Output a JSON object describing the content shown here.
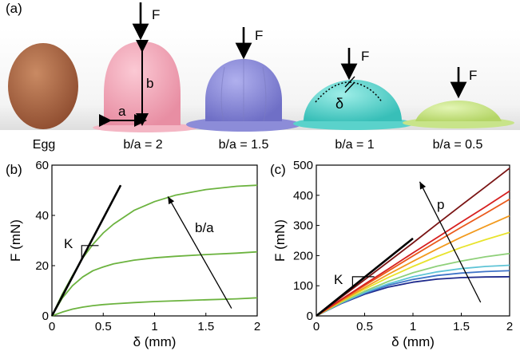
{
  "panel_a": {
    "label": "(a)",
    "captions": [
      "Egg",
      "b/a = 2",
      "b/a = 1.5",
      "b/a = 1",
      "b/a = 0.5"
    ],
    "force_symbol": "F",
    "dim_a": "a",
    "dim_b": "b",
    "deflection_symbol": "δ",
    "colors": {
      "egg": "#b86a44",
      "shell_2": "#f2a7b8",
      "shell_1_5": "#8f8fdc",
      "shell_1": "#5fd6d0",
      "shell_0_5": "#c9e58a"
    }
  },
  "panel_b": {
    "label": "(b)",
    "annotation_k": "K",
    "annotation_arrow": "b/a"
  },
  "panel_c": {
    "label": "(c)",
    "annotation_k": "K",
    "annotation_arrow": "p"
  },
  "chart_data": [
    {
      "type": "line",
      "panel": "(b)",
      "xlabel": "δ (mm)",
      "ylabel": "F (mN)",
      "xlim": [
        0,
        2
      ],
      "ylim": [
        0,
        60
      ],
      "xticks": [
        "0",
        "0.5",
        "1",
        "1.5",
        "2"
      ],
      "yticks": [
        "0",
        "20",
        "40",
        "60"
      ],
      "grid": false,
      "series": [
        {
          "color": "#6cb33f",
          "x": [
            0,
            0.1,
            0.2,
            0.3,
            0.4,
            0.5,
            0.6,
            0.8,
            1.0,
            1.2,
            1.5,
            1.8,
            2.0
          ],
          "y": [
            0,
            1.5,
            2.7,
            3.5,
            4.1,
            4.5,
            4.8,
            5.3,
            5.7,
            6.0,
            6.4,
            6.8,
            7.2
          ]
        },
        {
          "color": "#6cb33f",
          "x": [
            0,
            0.1,
            0.2,
            0.3,
            0.4,
            0.5,
            0.6,
            0.8,
            1.0,
            1.2,
            1.5,
            1.8,
            2.0
          ],
          "y": [
            0,
            7,
            12,
            15.5,
            18,
            19.5,
            20.7,
            22.2,
            23.1,
            23.7,
            24.4,
            25.0,
            25.5
          ]
        },
        {
          "color": "#6cb33f",
          "x": [
            0,
            0.1,
            0.2,
            0.3,
            0.4,
            0.5,
            0.6,
            0.8,
            1.0,
            1.2,
            1.5,
            1.8,
            2.0
          ],
          "y": [
            0,
            8.5,
            16,
            23,
            28.5,
            33,
            36.5,
            42,
            45.5,
            48,
            50.3,
            51.6,
            52
          ]
        },
        {
          "color": "#000000",
          "x": [
            0,
            0.67
          ],
          "y": [
            0,
            52
          ]
        }
      ]
    },
    {
      "type": "line",
      "panel": "(c)",
      "xlabel": "δ (mm)",
      "ylabel": "F (mN)",
      "xlim": [
        0,
        2
      ],
      "ylim": [
        0,
        500
      ],
      "xticks": [
        "0",
        "0.5",
        "1",
        "1.5",
        "2"
      ],
      "yticks": [
        "0",
        "100",
        "200",
        "300",
        "400",
        "500"
      ],
      "grid": false,
      "series": [
        {
          "color": "#1f2a8c",
          "x": [
            0,
            0.25,
            0.5,
            0.75,
            1.0,
            1.25,
            1.5,
            1.75,
            2.0
          ],
          "y": [
            0,
            40,
            72,
            96,
            112,
            122,
            127,
            129,
            130
          ]
        },
        {
          "color": "#3f74c8",
          "x": [
            0,
            0.25,
            0.5,
            0.75,
            1.0,
            1.25,
            1.5,
            1.75,
            2.0
          ],
          "y": [
            0,
            41,
            75,
            102,
            121,
            134,
            142,
            147,
            150
          ]
        },
        {
          "color": "#5fc4d6",
          "x": [
            0,
            0.25,
            0.5,
            0.75,
            1.0,
            1.25,
            1.5,
            1.75,
            2.0
          ],
          "y": [
            0,
            42,
            78,
            107,
            130,
            146,
            157,
            164,
            168
          ]
        },
        {
          "color": "#8fd07a",
          "x": [
            0,
            0.25,
            0.5,
            0.75,
            1.0,
            1.25,
            1.5,
            1.75,
            2.0
          ],
          "y": [
            0,
            43,
            82,
            115,
            143,
            165,
            182,
            196,
            207
          ]
        },
        {
          "color": "#e8e32c",
          "x": [
            0,
            0.25,
            0.5,
            0.75,
            1.0,
            1.25,
            1.5,
            1.75,
            2.0
          ],
          "y": [
            0,
            46,
            89,
            128,
            164,
            197,
            227,
            253,
            277
          ]
        },
        {
          "color": "#f29a1e",
          "x": [
            0,
            0.25,
            0.5,
            0.75,
            1.0,
            1.25,
            1.5,
            1.75,
            2.0
          ],
          "y": [
            0,
            48,
            94,
            139,
            181,
            222,
            261,
            297,
            332
          ]
        },
        {
          "color": "#ea5a1c",
          "x": [
            0,
            0.25,
            0.5,
            0.75,
            1.0,
            1.25,
            1.5,
            1.75,
            2.0
          ],
          "y": [
            0,
            51,
            101,
            150,
            199,
            247,
            294,
            340,
            387
          ]
        },
        {
          "color": "#d62020",
          "x": [
            0,
            0.25,
            0.5,
            0.75,
            1.0,
            1.25,
            1.5,
            1.75,
            2.0
          ],
          "y": [
            0,
            53,
            105,
            157,
            209,
            260,
            311,
            362,
            414
          ]
        },
        {
          "color": "#7a1414",
          "x": [
            0,
            0.25,
            0.5,
            0.75,
            1.0,
            1.25,
            1.5,
            1.75,
            2.0
          ],
          "y": [
            0,
            60,
            120,
            181,
            242,
            305,
            367,
            428,
            490
          ]
        },
        {
          "color": "#000000",
          "x": [
            0,
            1.0
          ],
          "y": [
            0,
            257
          ]
        }
      ]
    }
  ]
}
